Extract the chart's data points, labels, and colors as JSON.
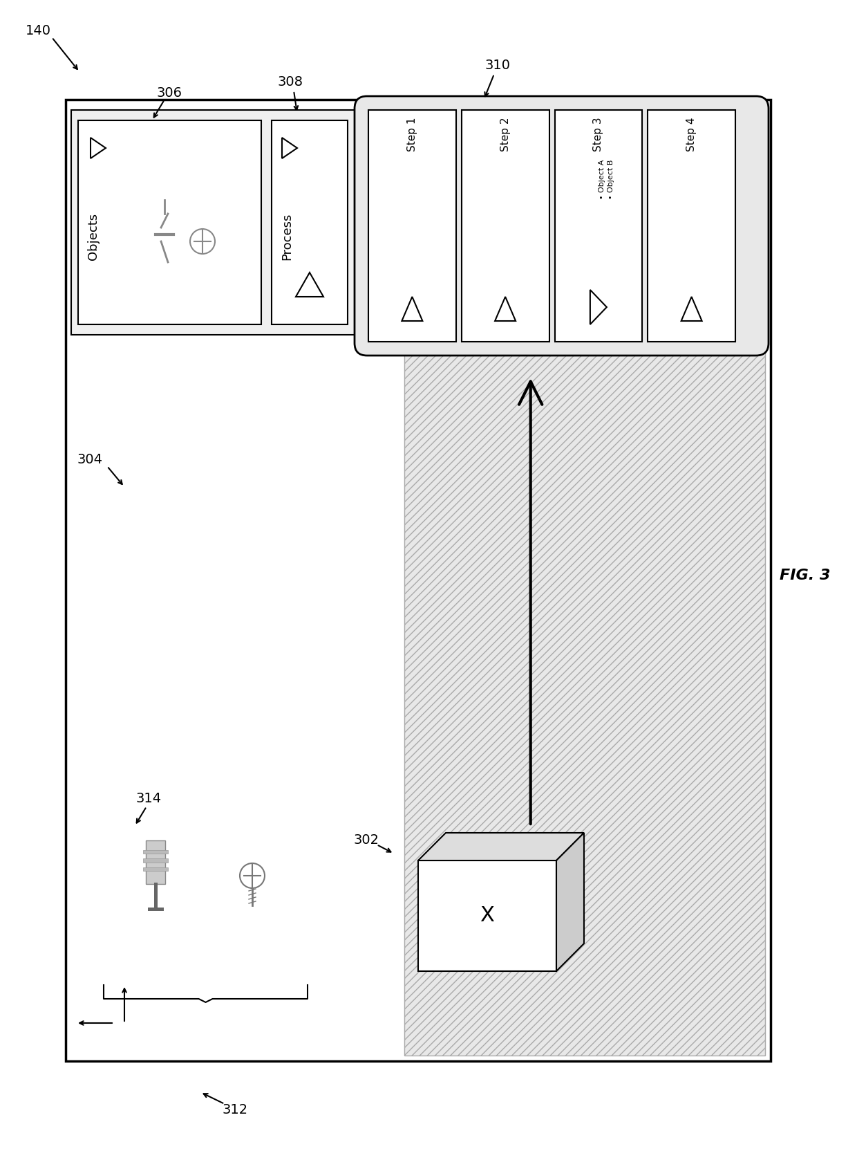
{
  "fig_width": 12.4,
  "fig_height": 16.64,
  "bg_color": "#ffffff",
  "label_140": "140",
  "label_304": "304",
  "label_306": "306",
  "label_308": "308",
  "label_310": "310",
  "label_302": "302",
  "label_312": "312",
  "label_314": "314",
  "fig3_label": "FIG. 3",
  "objects_label": "Objects",
  "process_label": "Process",
  "step1_label": "Step 1",
  "step2_label": "Step 2",
  "step3_label": "Step 3",
  "objectA_label": "Object A",
  "objectB_label": "Object B",
  "step4_label": "Step 4",
  "x_label": "X"
}
